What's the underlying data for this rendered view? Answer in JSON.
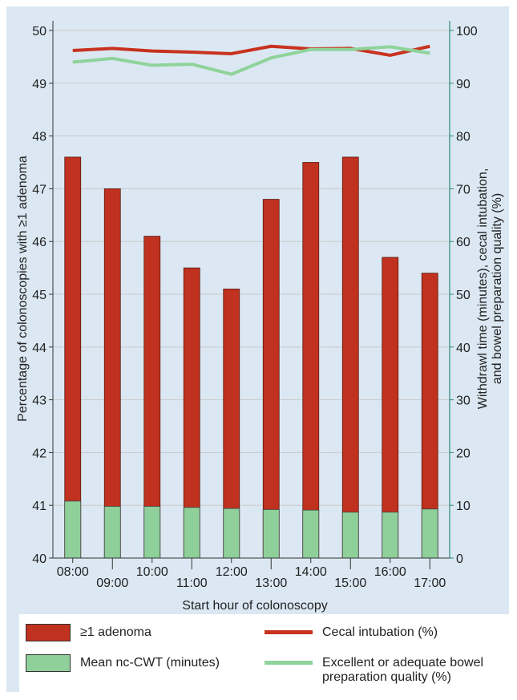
{
  "chart_data": {
    "type": "bar",
    "title": "",
    "xlabel": "Start hour of colonoscopy",
    "ylabel_left": "Percentage of colonoscopies with ≥1 adenoma",
    "ylabel_right_line1": "Withdrawl time (minutes), cecal intubation,",
    "ylabel_right_line2": "and bowel preparation quality (%)",
    "categories": [
      "08:00",
      "09:00",
      "10:00",
      "11:00",
      "12:00",
      "13:00",
      "14:00",
      "15:00",
      "16:00",
      "17:00"
    ],
    "ylim_left": [
      40,
      50
    ],
    "yticks_left": [
      "40",
      "41",
      "42",
      "43",
      "44",
      "45",
      "46",
      "47",
      "48",
      "49",
      "50"
    ],
    "ylim_right": [
      0,
      100
    ],
    "yticks_right": [
      "0",
      "10",
      "20",
      "30",
      "40",
      "50",
      "60",
      "70",
      "80",
      "90",
      "100"
    ],
    "grid": true,
    "legend_position": "bottom",
    "series": [
      {
        "name": "≥1 adenoma",
        "kind": "bar",
        "axis": "left",
        "color": "#c0311f",
        "values": [
          47.6,
          47.0,
          46.1,
          45.5,
          45.1,
          46.8,
          47.5,
          47.6,
          45.7,
          45.4
        ]
      },
      {
        "name": "Mean nc-CWT (minutes)",
        "kind": "bar",
        "axis": "right",
        "color": "#8fcf9a",
        "values": [
          10.8,
          9.8,
          9.8,
          9.6,
          9.4,
          9.2,
          9.1,
          8.7,
          8.7,
          9.3
        ]
      },
      {
        "name": "Cecal intubation (%)",
        "kind": "line",
        "axis": "right",
        "color": "#c8321f",
        "values": [
          96.2,
          96.6,
          96.1,
          95.9,
          95.6,
          97.0,
          96.5,
          96.6,
          95.3,
          97.0
        ]
      },
      {
        "name": "Excellent or adequate bowel preparation quality (%)",
        "kind": "line",
        "axis": "right",
        "color": "#8fd39a",
        "values": [
          94.0,
          94.7,
          93.4,
          93.6,
          91.7,
          94.8,
          96.4,
          96.4,
          96.9,
          95.7
        ]
      }
    ]
  },
  "legend": {
    "adenoma": "≥1 adenoma",
    "cwt": "Mean nc-CWT (minutes)",
    "cecal": "Cecal intubation (%)",
    "prep": "Excellent or adequate bowel preparation quality (%)"
  }
}
